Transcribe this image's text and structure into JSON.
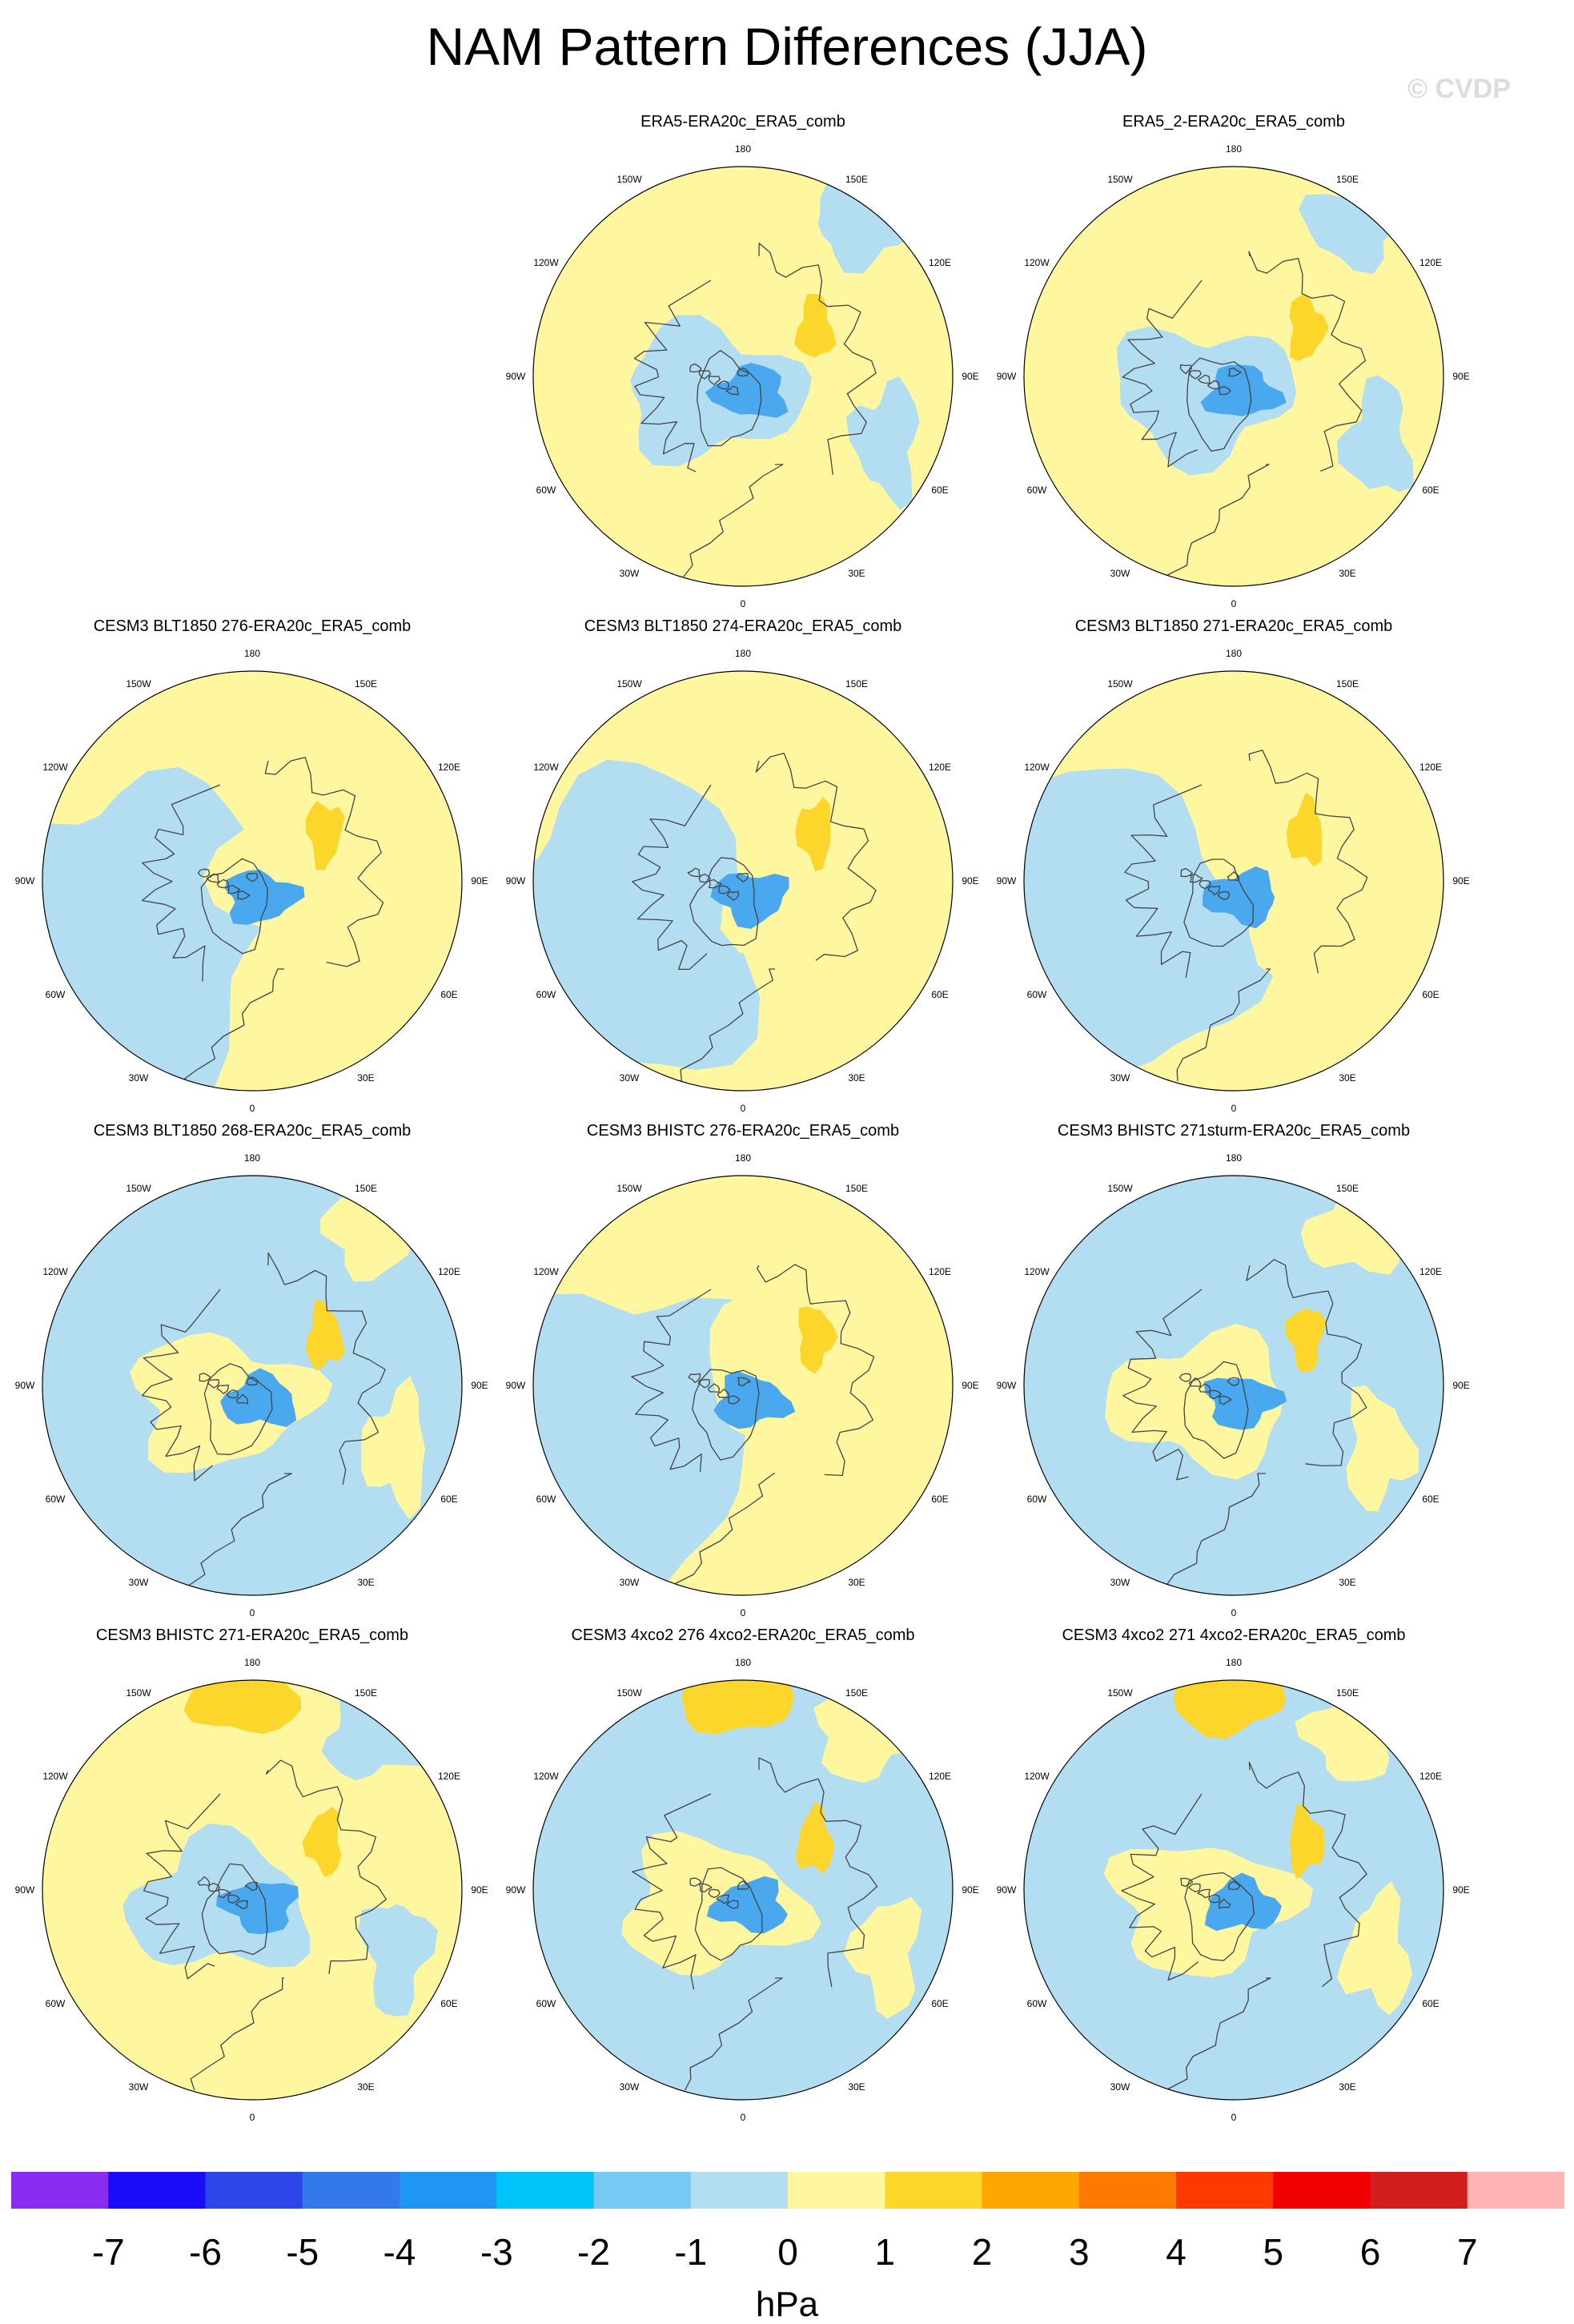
{
  "figure": {
    "title": "NAM Pattern Differences (JJA)",
    "watermark": "© CVDP"
  },
  "lon_labels": [
    "180",
    "150E",
    "120E",
    "90E",
    "60E",
    "30E",
    "0",
    "30W",
    "60W",
    "90W",
    "120W",
    "150W"
  ],
  "panels": [
    {
      "title": "",
      "empty": true
    },
    {
      "title": "ERA5-ERA20c_ERA5_comb",
      "mostly": "positive"
    },
    {
      "title": "ERA5_2-ERA20c_ERA5_comb",
      "mostly": "positive"
    },
    {
      "title": "CESM3 BLT1850 276-ERA20c_ERA5_comb",
      "mostly": "mixed"
    },
    {
      "title": "CESM3 BLT1850 274-ERA20c_ERA5_comb",
      "mostly": "mixed"
    },
    {
      "title": "CESM3 BLT1850 271-ERA20c_ERA5_comb",
      "mostly": "mixed"
    },
    {
      "title": "CESM3 BLT1850 268-ERA20c_ERA5_comb",
      "mostly": "negative"
    },
    {
      "title": "CESM3 BHISTC 276-ERA20c_ERA5_comb",
      "mostly": "mixed"
    },
    {
      "title": "CESM3 BHISTC 271sturm-ERA20c_ERA5_comb",
      "mostly": "negative"
    },
    {
      "title": "CESM3 BHISTC 271-ERA20c_ERA5_comb",
      "mostly": "positive"
    },
    {
      "title": "CESM3 4xco2 276 4xco2-ERA20c_ERA5_comb",
      "mostly": "negative"
    },
    {
      "title": "CESM3 4xco2 271 4xco2-ERA20c_ERA5_comb",
      "mostly": "negative"
    }
  ],
  "colorbar": {
    "unit": "hPa",
    "ticks": [
      "-7",
      "-6",
      "-5",
      "-4",
      "-3",
      "-2",
      "-1",
      "0",
      "1",
      "2",
      "3",
      "4",
      "5",
      "6",
      "7"
    ],
    "colors": [
      "#8a2cf2",
      "#1b0cf7",
      "#2d46e8",
      "#3479ec",
      "#1f96f2",
      "#00c3fa",
      "#76c9f2",
      "#b3def2",
      "#fff7a0",
      "#fdd62c",
      "#fca800",
      "#fc7a00",
      "#fc3a00",
      "#f00000",
      "#d21e1e",
      "#ffb4b4"
    ],
    "map_colors": {
      "negative": "#b3def2",
      "positive": "#fff7a0",
      "strong_negative": "#76c9f2",
      "strong_positive": "#fdd62c",
      "stronger_negative": "#4aa8ee"
    }
  }
}
